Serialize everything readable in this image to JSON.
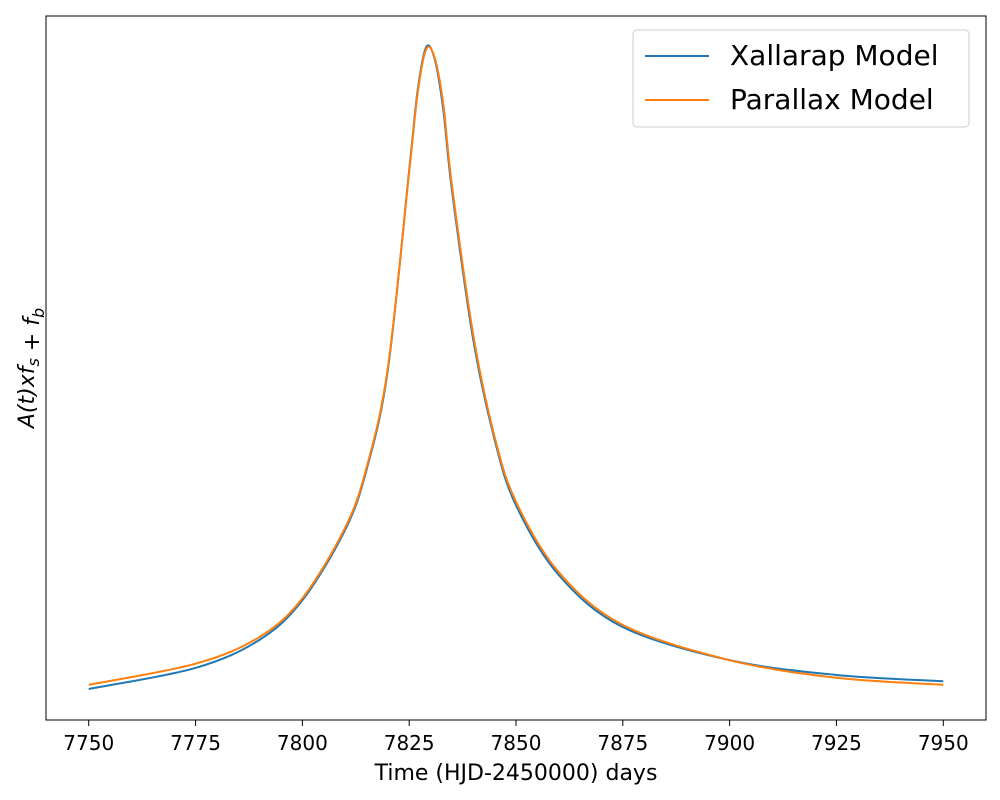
{
  "chart_data": {
    "type": "line",
    "xlabel": "Time (HJD-2450000) days",
    "ylabel": "A(t)xf_s + f_b",
    "x": [
      7750,
      7775,
      7790,
      7800,
      7810,
      7815,
      7820,
      7825,
      7827,
      7829,
      7831,
      7833,
      7835,
      7840,
      7845,
      7850,
      7860,
      7875,
      7900,
      7925,
      7950
    ],
    "series": [
      {
        "name": "Xallarap Model",
        "color": "#1f77b4",
        "values": [
          0.044,
          0.074,
          0.114,
          0.17,
          0.27,
          0.355,
          0.497,
          0.781,
          0.895,
          0.956,
          0.938,
          0.866,
          0.753,
          0.54,
          0.398,
          0.305,
          0.206,
          0.132,
          0.085,
          0.064,
          0.055
        ]
      },
      {
        "name": "Parallax Model",
        "color": "#ff7f0e",
        "values": [
          0.05,
          0.08,
          0.118,
          0.173,
          0.273,
          0.358,
          0.5,
          0.778,
          0.891,
          0.953,
          0.94,
          0.874,
          0.76,
          0.547,
          0.402,
          0.31,
          0.21,
          0.135,
          0.085,
          0.06,
          0.05
        ]
      }
    ],
    "xlim": [
      7740,
      7960
    ],
    "xticks": [
      7750,
      7775,
      7800,
      7825,
      7850,
      7875,
      7900,
      7925,
      7950
    ],
    "ylim": [
      0,
      1
    ],
    "legend": "upper right",
    "grid": false
  }
}
